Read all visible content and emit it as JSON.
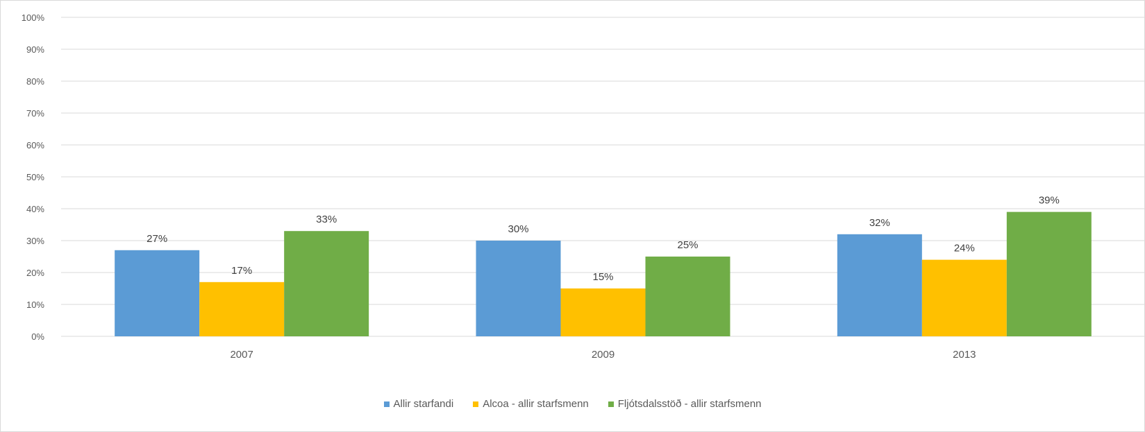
{
  "chart_data": {
    "type": "bar",
    "categories": [
      "2007",
      "2009",
      "2013"
    ],
    "series": [
      {
        "name": "Allir starfandi",
        "values": [
          27,
          30,
          32
        ],
        "color": "#5b9bd5"
      },
      {
        "name": "Alcoa - allir starfsmenn",
        "values": [
          17,
          15,
          24
        ],
        "color": "#ffc000"
      },
      {
        "name": "Fljótsdalsstöð - allir starfsmenn",
        "values": [
          33,
          25,
          39
        ],
        "color": "#70ad47"
      }
    ],
    "data_labels": [
      [
        "27%",
        "30%",
        "32%"
      ],
      [
        "17%",
        "15%",
        "24%"
      ],
      [
        "33%",
        "25%",
        "39%"
      ]
    ],
    "y_ticks": [
      0,
      10,
      20,
      30,
      40,
      50,
      60,
      70,
      80,
      90,
      100
    ],
    "y_tick_labels": [
      "0%",
      "10%",
      "20%",
      "30%",
      "40%",
      "50%",
      "60%",
      "70%",
      "80%",
      "90%",
      "100%"
    ],
    "ylim": [
      0,
      100
    ],
    "grid": true,
    "legend_position": "bottom",
    "title": "",
    "xlabel": "",
    "ylabel": ""
  }
}
